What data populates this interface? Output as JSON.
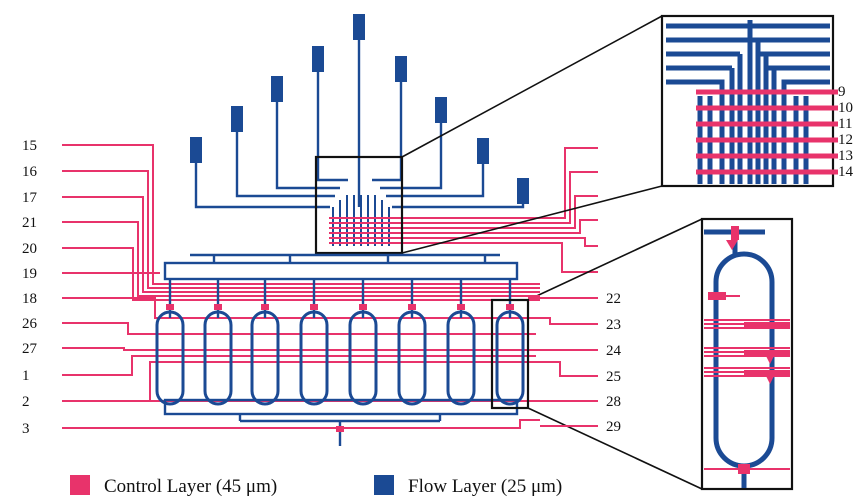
{
  "colors": {
    "control": "#e8336b",
    "flow": "#1b4a94",
    "outline": "#111111"
  },
  "control_labels_left": [
    "15",
    "16",
    "17",
    "21",
    "20",
    "19",
    "18",
    "26",
    "27",
    "1",
    "2",
    "3"
  ],
  "control_labels_right": [
    "22",
    "23",
    "24",
    "25",
    "28",
    "29"
  ],
  "inset_labels": [
    "9",
    "10",
    "11",
    "12",
    "13",
    "14"
  ],
  "legend": {
    "control": "Control Layer (45 μm)",
    "flow": "Flow Layer (25 μm)"
  }
}
